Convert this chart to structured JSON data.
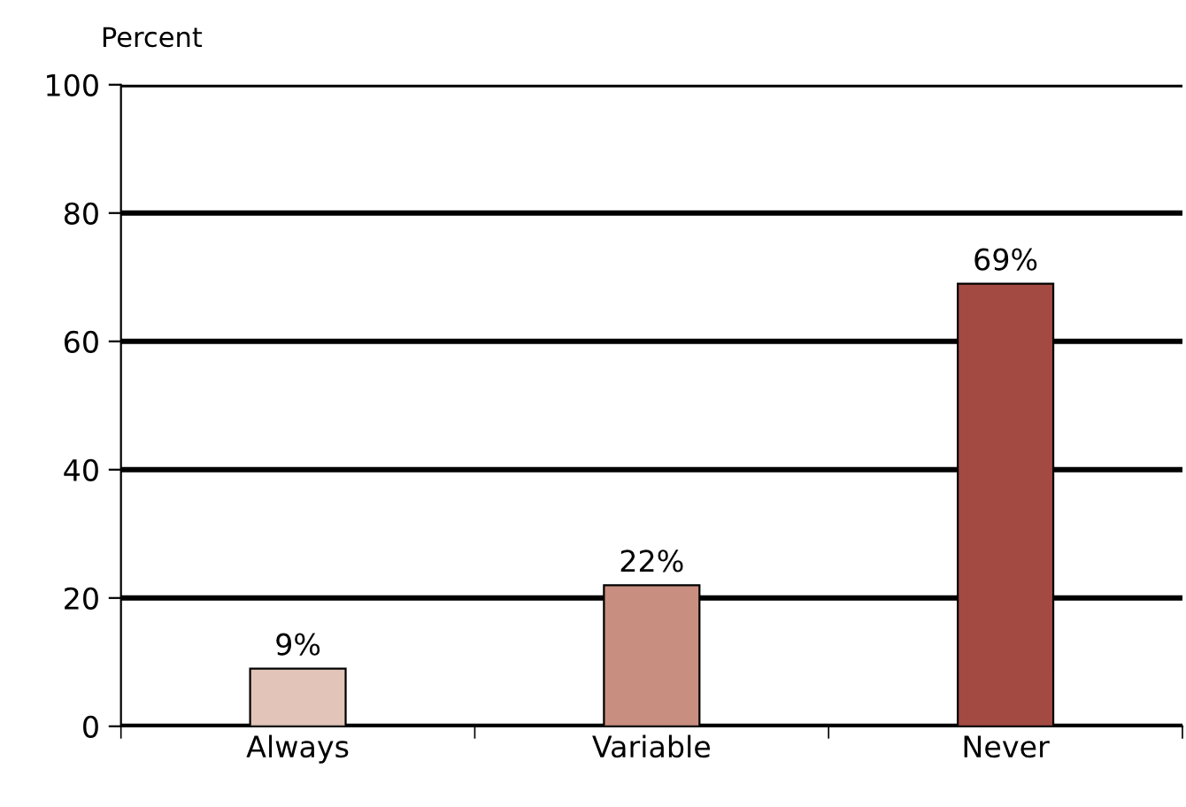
{
  "chart_data": {
    "type": "bar",
    "ylabel": "Percent",
    "categories": [
      "Always",
      "Variable",
      "Never"
    ],
    "values": [
      9,
      22,
      69
    ],
    "colors": [
      "#e2c4b8",
      "#c88e80",
      "#a34a42"
    ],
    "value_labels": [
      "9%",
      "22%",
      "69%"
    ],
    "ylim": [
      0,
      100
    ],
    "yticks": [
      0,
      20,
      40,
      60,
      80,
      100
    ],
    "grid": "y"
  }
}
